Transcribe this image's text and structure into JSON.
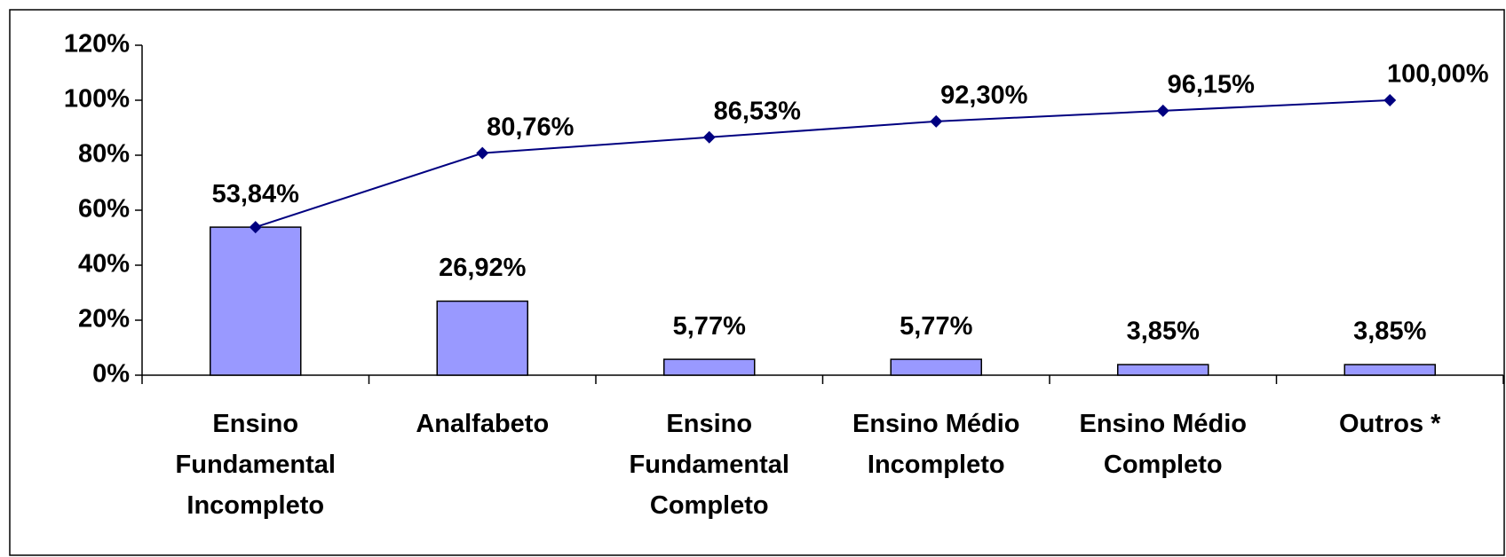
{
  "chart_data": {
    "type": "pareto",
    "categories": [
      "Ensino\nFundamental\nIncompleto",
      "Analfabeto",
      "Ensino\nFundamental\nCompleto",
      "Ensino Médio\nIncompleto",
      "Ensino Médio\nCompleto",
      "Outros *"
    ],
    "series": [
      {
        "type": "bar",
        "color": "#9999ff",
        "values": [
          53.84,
          26.92,
          5.77,
          5.77,
          3.85,
          3.85
        ],
        "value_labels": [
          "53,84%",
          "26,92%",
          "5,77%",
          "5,77%",
          "3,85%",
          "3,85%"
        ]
      },
      {
        "type": "line",
        "color": "#000080",
        "values": [
          53.84,
          80.76,
          86.53,
          92.3,
          96.15,
          100
        ],
        "value_labels": [
          null,
          "80,76%",
          "86,53%",
          "92,30%",
          "96,15%",
          "100,00%"
        ]
      }
    ],
    "ylim": [
      0,
      120
    ],
    "yticks": [
      {
        "value": 0,
        "label": "0%"
      },
      {
        "value": 20,
        "label": "20%"
      },
      {
        "value": 40,
        "label": "40%"
      },
      {
        "value": 60,
        "label": "60%"
      },
      {
        "value": 80,
        "label": "80%"
      },
      {
        "value": 100,
        "label": "100%"
      },
      {
        "value": 120,
        "label": "120%"
      }
    ],
    "grid": false
  }
}
